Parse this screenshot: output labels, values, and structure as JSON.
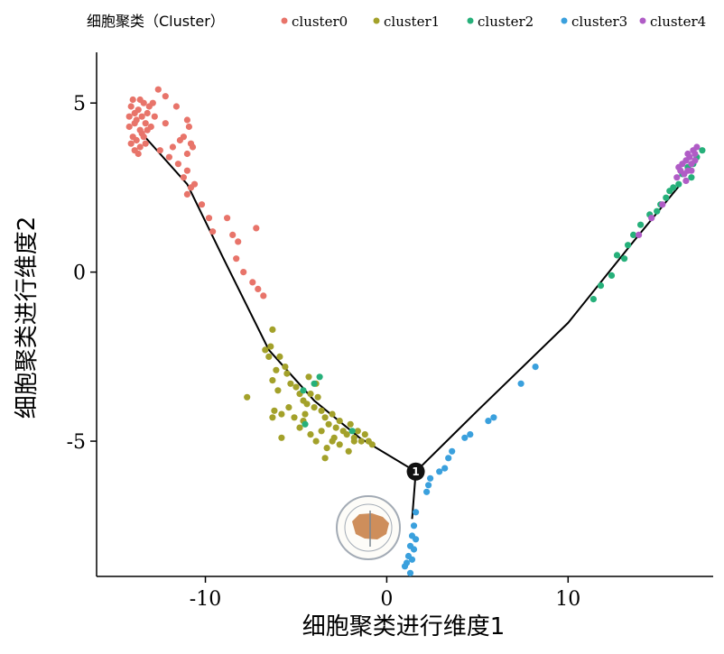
{
  "chart_data": {
    "type": "scatter",
    "legend": {
      "title": "细胞聚类（Cluster）",
      "position": "top",
      "entries": [
        {
          "name": "cluster0",
          "color": "#e8746a"
        },
        {
          "name": "cluster1",
          "color": "#a3a12a"
        },
        {
          "name": "cluster2",
          "color": "#26b07a"
        },
        {
          "name": "cluster3",
          "color": "#3aa0dd"
        },
        {
          "name": "cluster4",
          "color": "#b05cc6"
        }
      ]
    },
    "xlabel": "细胞聚类进行维度1",
    "ylabel": "细胞聚类进行维度2",
    "xlim": [
      -16,
      18
    ],
    "ylim": [
      -9,
      6.5
    ],
    "xticks": [
      {
        "value": -10,
        "label": "-10"
      },
      {
        "value": 0,
        "label": "0"
      },
      {
        "value": 10,
        "label": "10"
      }
    ],
    "yticks": [
      {
        "value": 5,
        "label": "5"
      },
      {
        "value": 0,
        "label": "0"
      },
      {
        "value": -5,
        "label": "-5"
      }
    ],
    "grid": false,
    "trajectory": [
      {
        "name": "trunk",
        "points": [
          [
            -13.5,
            4.1
          ],
          [
            -11,
            2.6
          ],
          [
            -9,
            0.4
          ],
          [
            -6.5,
            -2.3
          ],
          [
            -4,
            -3.8
          ],
          [
            -1.5,
            -4.9
          ],
          [
            1.6,
            -5.9
          ]
        ]
      },
      {
        "name": "branch-right",
        "points": [
          [
            1.6,
            -5.9
          ],
          [
            5,
            -4.1
          ],
          [
            10,
            -1.5
          ],
          [
            13.6,
            0.9
          ],
          [
            16.2,
            2.6
          ]
        ]
      },
      {
        "name": "branch-down",
        "points": [
          [
            1.6,
            -5.9
          ],
          [
            1.4,
            -7.3
          ]
        ]
      }
    ],
    "branch_point": {
      "x": 1.6,
      "y": -5.9,
      "label": "1"
    },
    "series": [
      {
        "name": "cluster0",
        "color": "#e8746a",
        "points": [
          [
            -14.1,
            4.9
          ],
          [
            -13.9,
            4.7
          ],
          [
            -13.8,
            4.5
          ],
          [
            -14.2,
            4.3
          ],
          [
            -13.7,
            4.8
          ],
          [
            -13.5,
            4.6
          ],
          [
            -13.6,
            4.2
          ],
          [
            -14.0,
            4.0
          ],
          [
            -13.4,
            5.0
          ],
          [
            -13.3,
            4.4
          ],
          [
            -13.8,
            3.9
          ],
          [
            -14.2,
            4.6
          ],
          [
            -13.6,
            3.7
          ],
          [
            -13.9,
            3.6
          ],
          [
            -13.2,
            4.7
          ],
          [
            -13.5,
            4.1
          ],
          [
            -13.1,
            4.9
          ],
          [
            -14.0,
            5.1
          ],
          [
            -13.7,
            3.5
          ],
          [
            -13.3,
            3.8
          ],
          [
            -13.0,
            4.3
          ],
          [
            -13.9,
            4.4
          ],
          [
            -14.1,
            3.8
          ],
          [
            -13.4,
            4.0
          ],
          [
            -12.8,
            4.6
          ],
          [
            -12.9,
            5.0
          ],
          [
            -13.6,
            5.1
          ],
          [
            -13.2,
            4.2
          ],
          [
            -12.6,
            5.4
          ],
          [
            -12.2,
            5.2
          ],
          [
            -11.6,
            4.9
          ],
          [
            -11.0,
            4.5
          ],
          [
            -10.9,
            4.3
          ],
          [
            -11.2,
            4.0
          ],
          [
            -10.8,
            3.8
          ],
          [
            -11.4,
            3.9
          ],
          [
            -11.0,
            3.5
          ],
          [
            -10.7,
            3.7
          ],
          [
            -11.8,
            3.7
          ],
          [
            -12.0,
            3.4
          ],
          [
            -12.5,
            3.6
          ],
          [
            -12.2,
            4.4
          ],
          [
            -11.5,
            3.2
          ],
          [
            -11.0,
            3.0
          ],
          [
            -11.2,
            2.8
          ],
          [
            -10.8,
            2.5
          ],
          [
            -11.0,
            2.3
          ],
          [
            -10.6,
            2.6
          ],
          [
            -10.2,
            2.0
          ],
          [
            -9.8,
            1.6
          ],
          [
            -8.8,
            1.6
          ],
          [
            -8.5,
            1.1
          ],
          [
            -8.2,
            0.9
          ],
          [
            -8.3,
            0.4
          ],
          [
            -7.9,
            0.0
          ],
          [
            -7.4,
            -0.3
          ],
          [
            -7.1,
            -0.5
          ],
          [
            -6.8,
            -0.7
          ],
          [
            -7.2,
            1.3
          ],
          [
            -9.6,
            1.2
          ]
        ]
      },
      {
        "name": "cluster1",
        "color": "#a3a12a",
        "points": [
          [
            -6.3,
            -1.7
          ],
          [
            -6.4,
            -2.2
          ],
          [
            -6.5,
            -2.5
          ],
          [
            -6.7,
            -2.3
          ],
          [
            -5.9,
            -2.5
          ],
          [
            -6.1,
            -2.9
          ],
          [
            -6.3,
            -3.2
          ],
          [
            -6.0,
            -3.5
          ],
          [
            -5.6,
            -2.8
          ],
          [
            -5.5,
            -3.0
          ],
          [
            -5.3,
            -3.3
          ],
          [
            -5.0,
            -3.4
          ],
          [
            -4.8,
            -3.6
          ],
          [
            -4.6,
            -3.8
          ],
          [
            -4.4,
            -3.9
          ],
          [
            -4.2,
            -3.6
          ],
          [
            -4.0,
            -4.0
          ],
          [
            -3.8,
            -3.7
          ],
          [
            -3.6,
            -4.1
          ],
          [
            -3.4,
            -4.3
          ],
          [
            -3.2,
            -4.5
          ],
          [
            -3.0,
            -4.2
          ],
          [
            -2.8,
            -4.6
          ],
          [
            -2.6,
            -4.4
          ],
          [
            -2.4,
            -4.7
          ],
          [
            -2.2,
            -4.8
          ],
          [
            -2.0,
            -4.5
          ],
          [
            -1.8,
            -4.9
          ],
          [
            -1.6,
            -4.7
          ],
          [
            -1.4,
            -5.0
          ],
          [
            -1.2,
            -4.8
          ],
          [
            -1.0,
            -5.0
          ],
          [
            -0.8,
            -5.1
          ],
          [
            -5.4,
            -4.0
          ],
          [
            -5.1,
            -4.3
          ],
          [
            -4.8,
            -4.6
          ],
          [
            -4.5,
            -4.2
          ],
          [
            -4.2,
            -4.8
          ],
          [
            -3.9,
            -5.0
          ],
          [
            -3.6,
            -4.7
          ],
          [
            -3.3,
            -5.2
          ],
          [
            -3.0,
            -5.0
          ],
          [
            -5.8,
            -4.2
          ],
          [
            -6.2,
            -4.1
          ],
          [
            -7.7,
            -3.7
          ],
          [
            -6.3,
            -4.3
          ],
          [
            -5.8,
            -4.9
          ],
          [
            -3.4,
            -5.5
          ],
          [
            -2.6,
            -5.1
          ],
          [
            -2.1,
            -5.3
          ],
          [
            -4.6,
            -4.4
          ],
          [
            -3.9,
            -3.3
          ],
          [
            -4.3,
            -3.1
          ],
          [
            -1.8,
            -5.0
          ],
          [
            -2.9,
            -4.9
          ]
        ]
      },
      {
        "name": "cluster2",
        "color": "#26b07a",
        "points": [
          [
            -4.6,
            -3.5
          ],
          [
            -3.7,
            -3.1
          ],
          [
            -4.0,
            -3.3
          ],
          [
            -4.5,
            -4.5
          ],
          [
            -1.9,
            -4.7
          ],
          [
            11.4,
            -0.8
          ],
          [
            11.8,
            -0.4
          ],
          [
            12.4,
            -0.1
          ],
          [
            12.7,
            0.5
          ],
          [
            13.1,
            0.4
          ],
          [
            13.3,
            0.8
          ],
          [
            13.6,
            1.1
          ],
          [
            14.0,
            1.4
          ],
          [
            14.5,
            1.7
          ],
          [
            14.9,
            1.8
          ],
          [
            15.1,
            2.0
          ],
          [
            15.4,
            2.2
          ],
          [
            15.6,
            2.4
          ],
          [
            15.8,
            2.5
          ],
          [
            16.1,
            2.6
          ],
          [
            16.3,
            2.9
          ],
          [
            16.6,
            3.1
          ],
          [
            16.9,
            3.2
          ],
          [
            17.1,
            3.4
          ],
          [
            17.4,
            3.6
          ],
          [
            16.8,
            2.8
          ]
        ]
      },
      {
        "name": "cluster3",
        "color": "#3aa0dd",
        "points": [
          [
            8.2,
            -2.8
          ],
          [
            7.4,
            -3.3
          ],
          [
            5.9,
            -4.3
          ],
          [
            5.6,
            -4.4
          ],
          [
            4.6,
            -4.8
          ],
          [
            4.3,
            -4.9
          ],
          [
            3.6,
            -5.3
          ],
          [
            3.4,
            -5.5
          ],
          [
            3.2,
            -5.8
          ],
          [
            2.9,
            -5.9
          ],
          [
            2.4,
            -6.1
          ],
          [
            2.3,
            -6.3
          ],
          [
            2.2,
            -6.5
          ],
          [
            1.6,
            -7.1
          ],
          [
            1.5,
            -7.5
          ],
          [
            1.4,
            -7.8
          ],
          [
            1.6,
            -7.9
          ],
          [
            1.3,
            -8.1
          ],
          [
            1.5,
            -8.2
          ],
          [
            1.2,
            -8.4
          ],
          [
            1.4,
            -8.5
          ],
          [
            1.1,
            -8.6
          ],
          [
            1.0,
            -8.7
          ],
          [
            1.3,
            -8.9
          ]
        ]
      },
      {
        "name": "cluster4",
        "color": "#b05cc6",
        "points": [
          [
            13.9,
            1.1
          ],
          [
            14.6,
            1.6
          ],
          [
            15.2,
            2.0
          ],
          [
            16.0,
            2.8
          ],
          [
            16.2,
            3.0
          ],
          [
            16.3,
            3.2
          ],
          [
            16.5,
            3.3
          ],
          [
            16.6,
            3.0
          ],
          [
            16.7,
            3.4
          ],
          [
            16.8,
            3.2
          ],
          [
            16.9,
            3.6
          ],
          [
            17.0,
            3.5
          ],
          [
            17.1,
            3.7
          ],
          [
            16.4,
            2.9
          ],
          [
            16.1,
            3.1
          ],
          [
            16.5,
            2.7
          ],
          [
            16.8,
            3.0
          ],
          [
            17.0,
            3.3
          ],
          [
            16.6,
            3.5
          ]
        ]
      }
    ]
  }
}
